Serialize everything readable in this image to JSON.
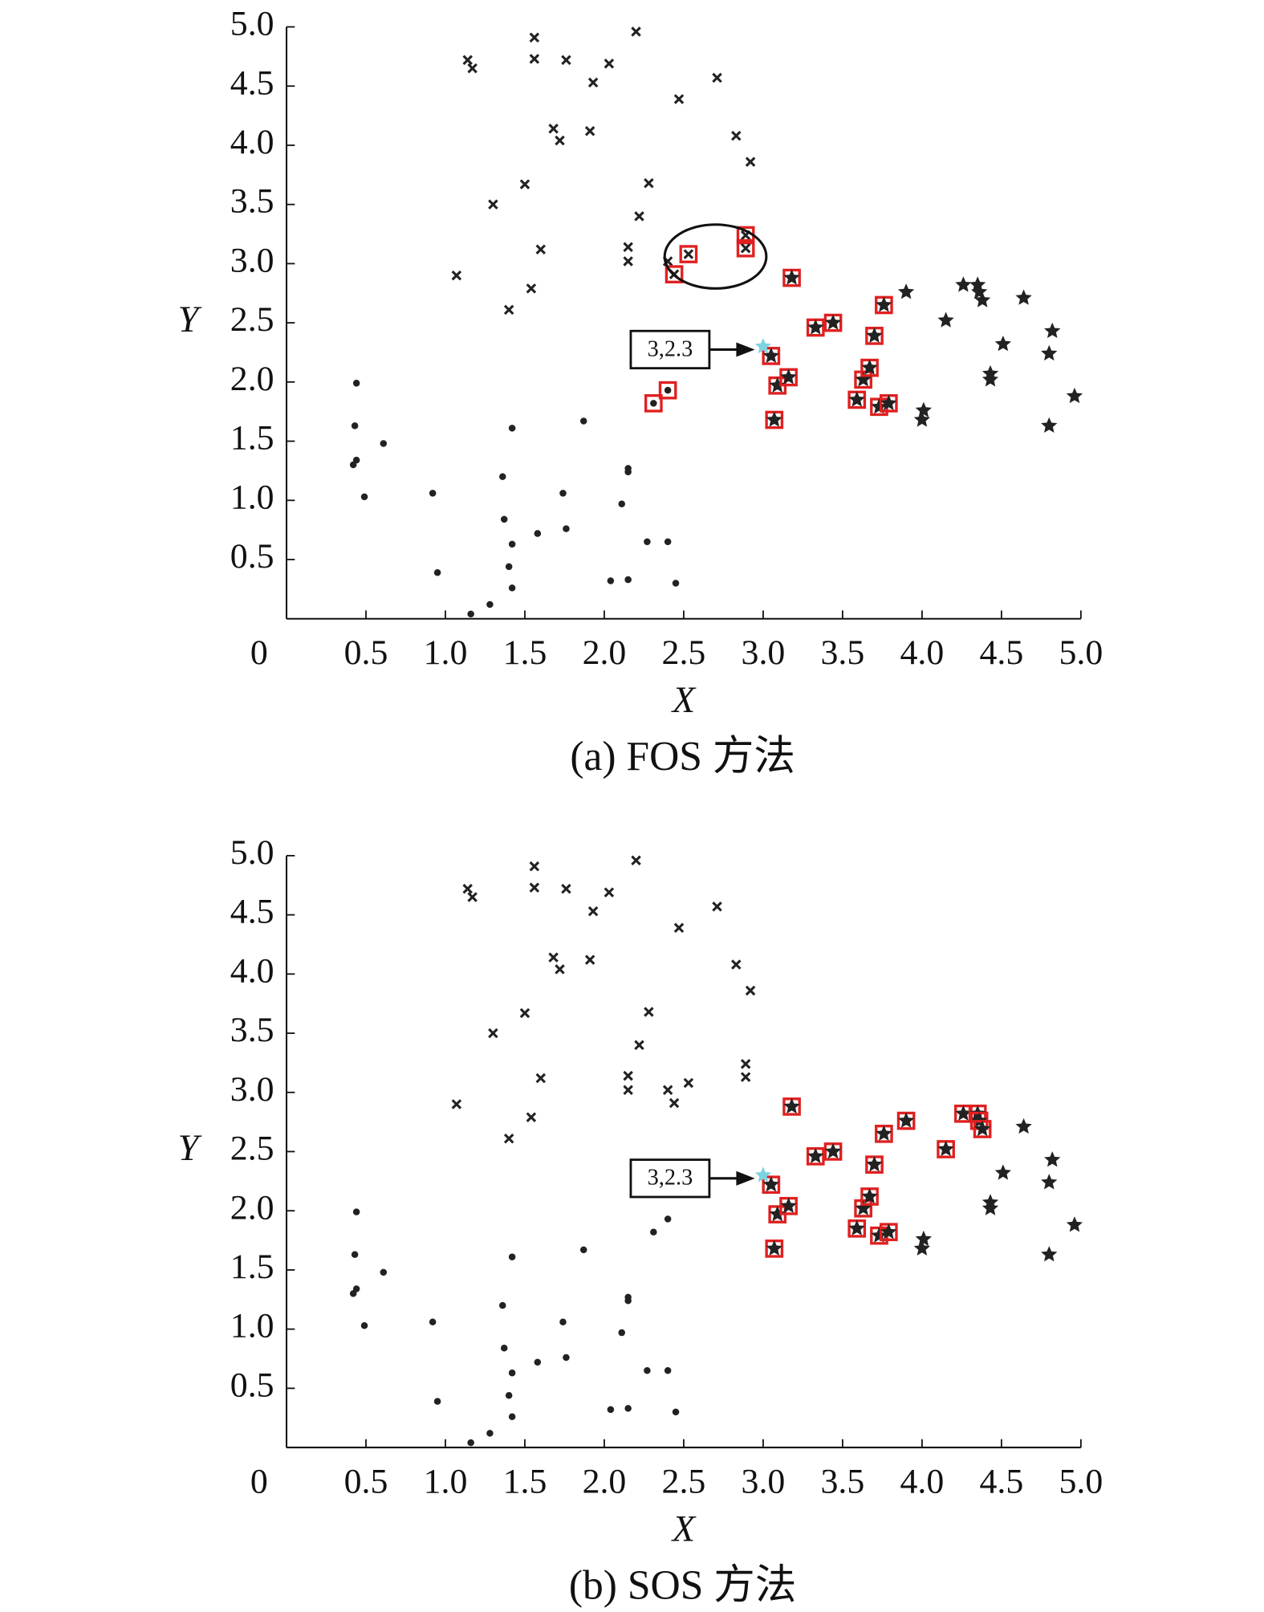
{
  "chart_data": [
    {
      "type": "scatter",
      "title": "(a) FOS 方法",
      "x_label": "X",
      "y_label": "Y",
      "xlim": [
        0,
        5
      ],
      "ylim": [
        0,
        5
      ],
      "xticks": [
        0,
        0.5,
        {
          "value": 1,
          "label": "1.0"
        },
        1.5,
        {
          "value": 2,
          "label": "2.0"
        },
        2.5,
        {
          "value": 3,
          "label": "3.0"
        },
        3.5,
        {
          "value": 4,
          "label": "4.0"
        },
        4.5,
        {
          "value": 5,
          "label": "5.0"
        }
      ],
      "yticks": [
        0.5,
        {
          "value": 1,
          "label": "1.0"
        },
        1.5,
        {
          "value": 2,
          "label": "2.0"
        },
        2.5,
        {
          "value": 3,
          "label": "3.0"
        },
        3.5,
        {
          "value": 4,
          "label": "4.0"
        },
        4.5,
        {
          "value": 5,
          "label": "5.0"
        }
      ],
      "highlight_color": "#e02020",
      "series": [
        {
          "marker": "dot",
          "color": "#222222",
          "x": [
            0.44,
            0.43,
            0.44,
            0.42,
            0.61,
            0.49,
            0.92,
            0.95,
            1.16,
            1.28,
            1.36,
            1.37,
            1.4,
            1.42,
            1.42,
            1.42,
            1.58,
            1.74,
            1.76,
            1.87,
            2.04,
            2.11,
            2.15,
            2.15,
            2.15,
            2.27,
            2.4,
            2.45,
            2.31,
            2.4
          ],
          "y": [
            1.99,
            1.63,
            1.34,
            1.3,
            1.48,
            1.03,
            1.06,
            0.39,
            0.04,
            0.12,
            1.2,
            0.84,
            0.44,
            0.63,
            0.26,
            1.61,
            0.72,
            1.06,
            0.76,
            1.67,
            0.32,
            0.97,
            0.33,
            1.27,
            1.24,
            0.65,
            0.65,
            0.3,
            1.82,
            1.93
          ],
          "highlight": [
            28,
            29
          ]
        },
        {
          "marker": "cross",
          "color": "#222222",
          "x": [
            1.14,
            1.17,
            1.56,
            1.56,
            1.76,
            1.93,
            2.03,
            2.2,
            2.47,
            2.71,
            1.68,
            1.72,
            1.91,
            2.83,
            2.92,
            2.28,
            1.5,
            1.3,
            2.22,
            2.15,
            2.15,
            1.6,
            1.07,
            1.54,
            1.4,
            2.4,
            2.53,
            2.44,
            2.89,
            2.89
          ],
          "y": [
            4.72,
            4.65,
            4.91,
            4.73,
            4.72,
            4.53,
            4.69,
            4.96,
            4.39,
            4.57,
            4.14,
            4.04,
            4.12,
            4.08,
            3.86,
            3.68,
            3.67,
            3.5,
            3.4,
            3.14,
            3.02,
            3.12,
            2.9,
            2.79,
            2.61,
            3.02,
            3.08,
            2.91,
            3.24,
            3.13
          ],
          "highlight": [
            26,
            27,
            28,
            29
          ]
        },
        {
          "marker": "star",
          "color": "#222222",
          "x": [
            3.05,
            3.09,
            3.16,
            3.07,
            3.18,
            3.33,
            3.44,
            3.59,
            3.63,
            3.67,
            3.7,
            3.73,
            3.79,
            3.76,
            3.9,
            4.15,
            4.26,
            4.35,
            4.36,
            4.38,
            4.51,
            4.43,
            4.43,
            4.64,
            4.8,
            4.82,
            4.8,
            4.96,
            4.0,
            4.01
          ],
          "y": [
            2.22,
            1.97,
            2.04,
            1.68,
            2.88,
            2.46,
            2.5,
            1.85,
            2.02,
            2.12,
            2.39,
            1.79,
            1.82,
            2.65,
            2.76,
            2.52,
            2.82,
            2.82,
            2.76,
            2.69,
            2.32,
            2.07,
            2.02,
            2.71,
            2.24,
            2.43,
            1.63,
            1.88,
            1.68,
            1.76
          ],
          "highlight": [
            0,
            1,
            2,
            3,
            4,
            5,
            6,
            7,
            8,
            9,
            10,
            11,
            12,
            13
          ]
        }
      ],
      "annotation": {
        "text": "3,2.3",
        "x": 3,
        "y": 2.3,
        "color": "#7fd3e0"
      },
      "ellipse": {
        "cx": 2.7,
        "cy": 3.06,
        "rx": 0.32,
        "ry": 0.27
      }
    },
    {
      "type": "scatter",
      "title": "(b) SOS 方法",
      "x_label": "X",
      "y_label": "Y",
      "xlim": [
        0,
        5
      ],
      "ylim": [
        0,
        5
      ],
      "xticks": [
        0,
        0.5,
        {
          "value": 1,
          "label": "1.0"
        },
        1.5,
        {
          "value": 2,
          "label": "2.0"
        },
        2.5,
        {
          "value": 3,
          "label": "3.0"
        },
        3.5,
        {
          "value": 4,
          "label": "4.0"
        },
        4.5,
        {
          "value": 5,
          "label": "5.0"
        }
      ],
      "yticks": [
        0.5,
        {
          "value": 1,
          "label": "1.0"
        },
        1.5,
        {
          "value": 2,
          "label": "2.0"
        },
        2.5,
        {
          "value": 3,
          "label": "3.0"
        },
        3.5,
        {
          "value": 4,
          "label": "4.0"
        },
        4.5,
        {
          "value": 5,
          "label": "5.0"
        }
      ],
      "highlight_color": "#e02020",
      "series": [
        {
          "marker": "dot",
          "color": "#222222",
          "x": [
            0.44,
            0.43,
            0.44,
            0.42,
            0.61,
            0.49,
            0.92,
            0.95,
            1.16,
            1.28,
            1.36,
            1.37,
            1.4,
            1.42,
            1.42,
            1.42,
            1.58,
            1.74,
            1.76,
            1.87,
            2.04,
            2.11,
            2.15,
            2.15,
            2.15,
            2.27,
            2.4,
            2.45,
            2.31,
            2.4
          ],
          "y": [
            1.99,
            1.63,
            1.34,
            1.3,
            1.48,
            1.03,
            1.06,
            0.39,
            0.04,
            0.12,
            1.2,
            0.84,
            0.44,
            0.63,
            0.26,
            1.61,
            0.72,
            1.06,
            0.76,
            1.67,
            0.32,
            0.97,
            0.33,
            1.27,
            1.24,
            0.65,
            0.65,
            0.3,
            1.82,
            1.93
          ],
          "highlight": []
        },
        {
          "marker": "cross",
          "color": "#222222",
          "x": [
            1.14,
            1.17,
            1.56,
            1.56,
            1.76,
            1.93,
            2.03,
            2.2,
            2.47,
            2.71,
            1.68,
            1.72,
            1.91,
            2.83,
            2.92,
            2.28,
            1.5,
            1.3,
            2.22,
            2.15,
            2.15,
            1.6,
            1.07,
            1.54,
            1.4,
            2.4,
            2.53,
            2.44,
            2.89,
            2.89
          ],
          "y": [
            4.72,
            4.65,
            4.91,
            4.73,
            4.72,
            4.53,
            4.69,
            4.96,
            4.39,
            4.57,
            4.14,
            4.04,
            4.12,
            4.08,
            3.86,
            3.68,
            3.67,
            3.5,
            3.4,
            3.14,
            3.02,
            3.12,
            2.9,
            2.79,
            2.61,
            3.02,
            3.08,
            2.91,
            3.24,
            3.13
          ],
          "highlight": []
        },
        {
          "marker": "star",
          "color": "#222222",
          "x": [
            3.05,
            3.09,
            3.16,
            3.07,
            3.18,
            3.33,
            3.44,
            3.59,
            3.63,
            3.67,
            3.7,
            3.73,
            3.79,
            3.76,
            3.9,
            4.15,
            4.26,
            4.35,
            4.36,
            4.38,
            4.51,
            4.43,
            4.43,
            4.64,
            4.8,
            4.82,
            4.8,
            4.96,
            4.0,
            4.01
          ],
          "y": [
            2.22,
            1.97,
            2.04,
            1.68,
            2.88,
            2.46,
            2.5,
            1.85,
            2.02,
            2.12,
            2.39,
            1.79,
            1.82,
            2.65,
            2.76,
            2.52,
            2.82,
            2.82,
            2.76,
            2.69,
            2.32,
            2.07,
            2.02,
            2.71,
            2.24,
            2.43,
            1.63,
            1.88,
            1.68,
            1.76
          ],
          "highlight": [
            0,
            1,
            2,
            3,
            4,
            5,
            6,
            7,
            8,
            9,
            10,
            11,
            12,
            13,
            14,
            15,
            16,
            17,
            18,
            19
          ]
        }
      ],
      "annotation": {
        "text": "3,2.3",
        "x": 3,
        "y": 2.3,
        "color": "#7fd3e0"
      }
    }
  ]
}
